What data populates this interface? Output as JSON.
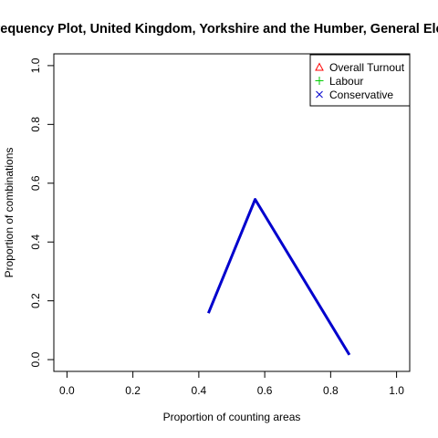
{
  "chart_data": {
    "type": "line",
    "title": "Frequency Plot, United Kingdom, Yorkshire and the Humber, General Election",
    "xlabel": "Proportion of counting areas",
    "ylabel": "Proportion of combinations",
    "xlim": [
      0,
      1
    ],
    "ylim": [
      0,
      1
    ],
    "xticks": [
      "0.0",
      "0.2",
      "0.4",
      "0.6",
      "0.8",
      "1.0"
    ],
    "yticks": [
      "0.0",
      "0.2",
      "0.4",
      "0.6",
      "0.8",
      "1.0"
    ],
    "grid": false,
    "legend_position": "top-right",
    "legend": [
      {
        "label": "Overall Turnout",
        "symbol": "triangle",
        "color": "#ff0000"
      },
      {
        "label": "Labour",
        "symbol": "plus",
        "color": "#00cd00"
      },
      {
        "label": "Conservative",
        "symbol": "cross",
        "color": "#0000cd"
      }
    ],
    "series": [
      {
        "color": "#0000cd",
        "x": [
          0.429,
          0.571,
          0.857
        ],
        "y": [
          0.158,
          0.545,
          0.016
        ]
      }
    ]
  }
}
